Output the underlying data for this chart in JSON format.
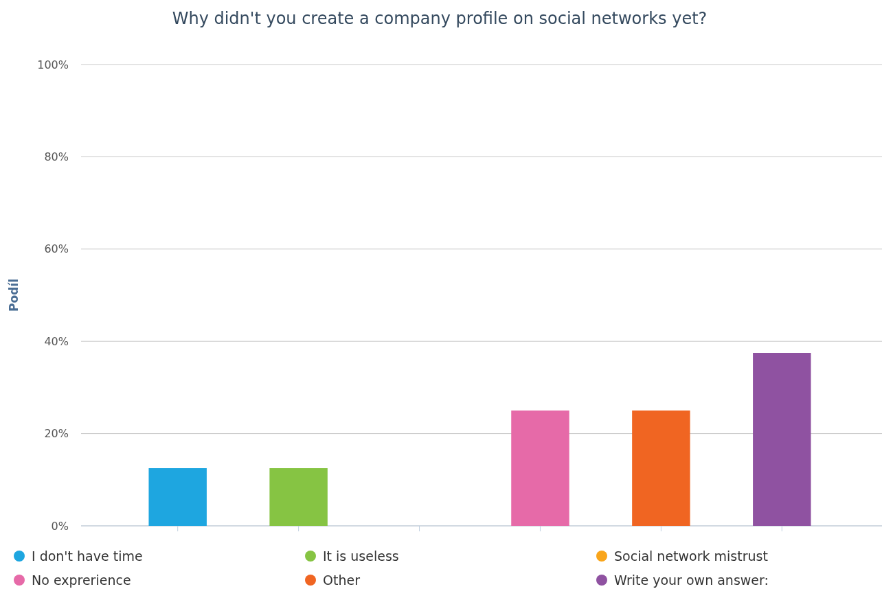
{
  "chart_data": {
    "type": "bar",
    "title": "Why didn't you create a company profile on social networks yet?",
    "ylabel": "Podíl",
    "categories": [
      null,
      null,
      null,
      null,
      null,
      null
    ],
    "series": [
      {
        "name": "I don't have time",
        "color": "#1ea6e0",
        "values": [
          12.5,
          null,
          null,
          null,
          null,
          null
        ]
      },
      {
        "name": "It is useless",
        "color": "#86c443",
        "values": [
          null,
          12.5,
          null,
          null,
          null,
          null
        ]
      },
      {
        "name": "Social network mistrust",
        "color": "#f9a51b",
        "values": [
          null,
          null,
          0,
          null,
          null,
          null
        ]
      },
      {
        "name": "No exprerience",
        "color": "#e66aa8",
        "values": [
          null,
          null,
          null,
          25,
          null,
          null
        ]
      },
      {
        "name": "Other",
        "color": "#f06522",
        "values": [
          null,
          null,
          null,
          null,
          25,
          null
        ]
      },
      {
        "name": "Write your own answer:",
        "color": "#8f52a1",
        "values": [
          null,
          null,
          null,
          null,
          null,
          37.5
        ]
      }
    ],
    "ylim": [
      0,
      100
    ],
    "yticks": [
      {
        "value": 0,
        "label": "0%"
      },
      {
        "value": 20,
        "label": "20%"
      },
      {
        "value": 40,
        "label": "40%"
      },
      {
        "value": 60,
        "label": "60%"
      },
      {
        "value": 80,
        "label": "80%"
      },
      {
        "value": 100,
        "label": "100%"
      }
    ],
    "grid": "y",
    "legend": "bottom"
  }
}
